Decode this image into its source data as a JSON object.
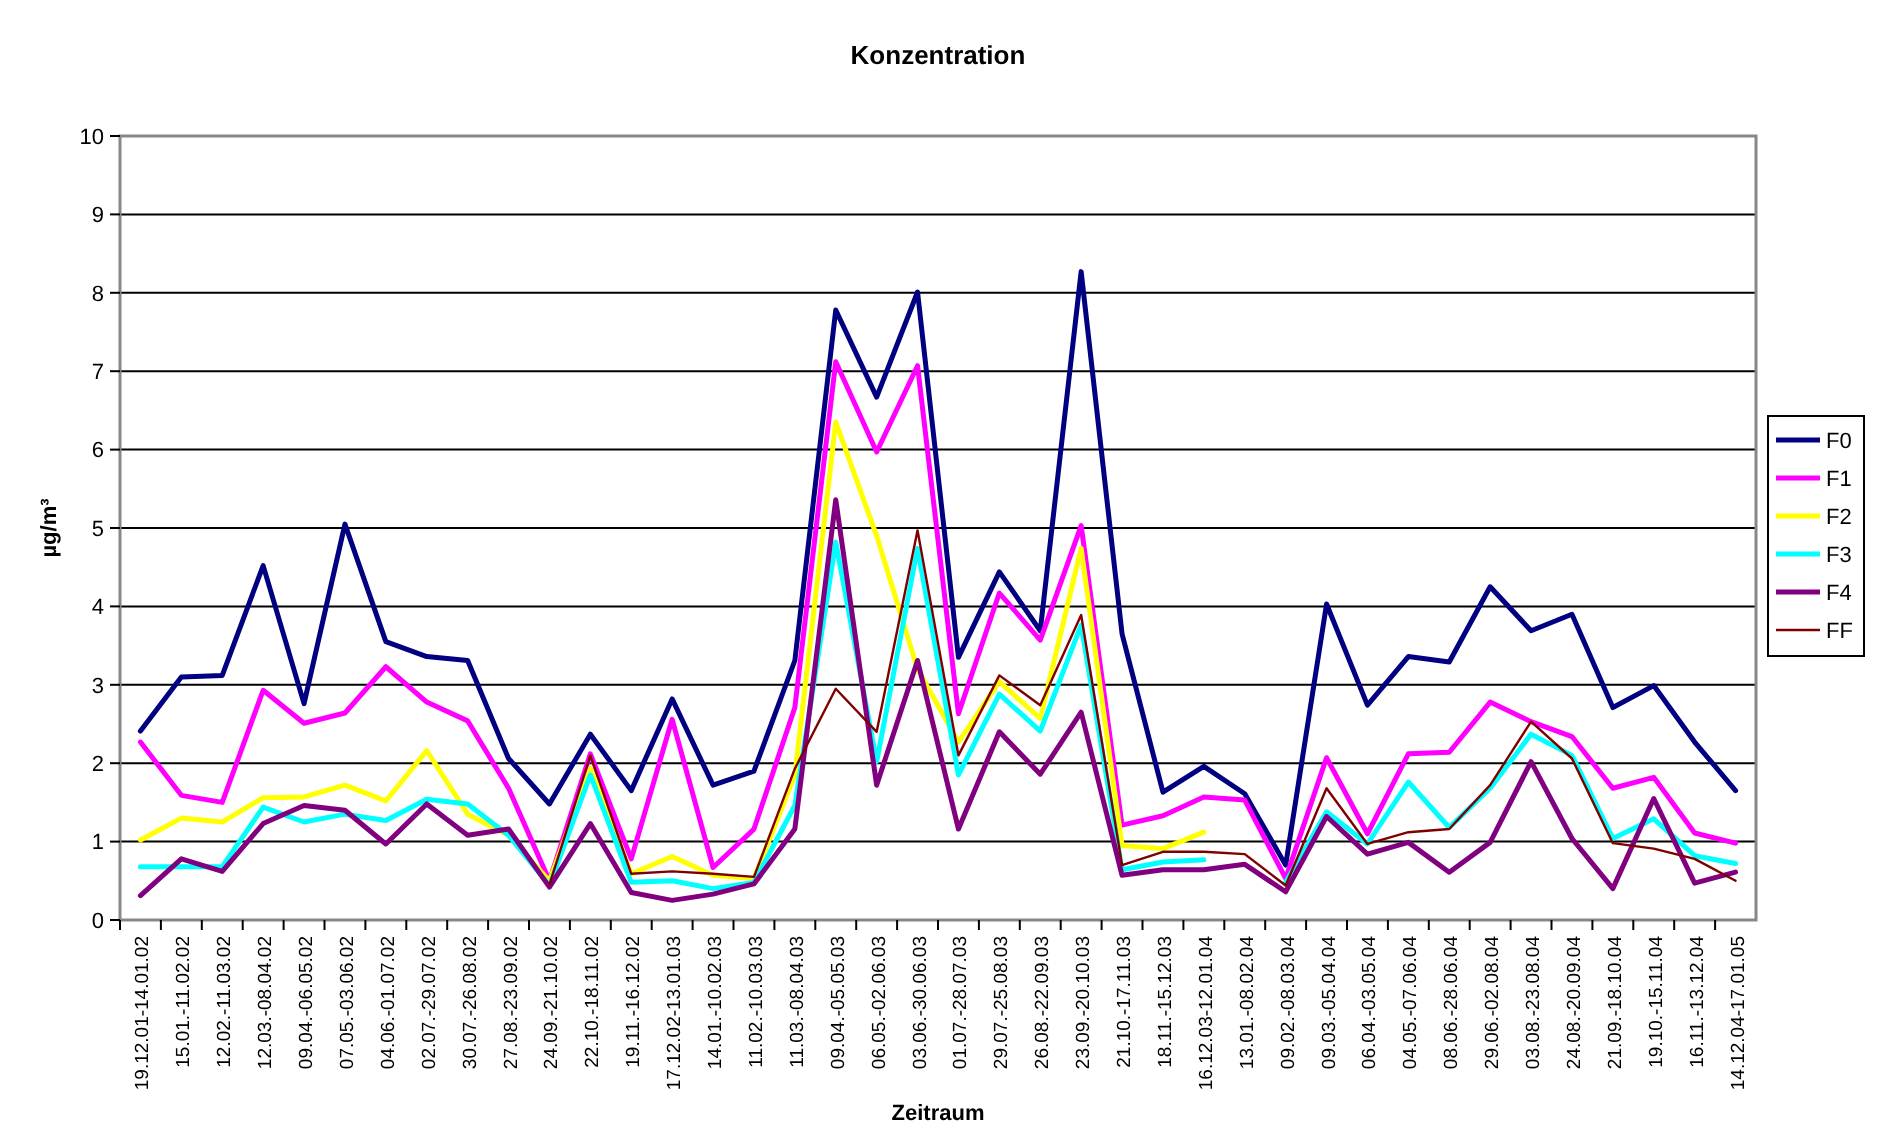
{
  "chart_data": {
    "type": "line",
    "title": "Konzentration",
    "xlabel": "Zeitraum",
    "ylabel": "µg/m³",
    "categories": [
      "19.12.01-14.01.02",
      "15.01.-11.02.02",
      "12.02.-11.03.02",
      "12.03.-08.04.02",
      "09.04.-06.05.02",
      "07.05.-03.06.02",
      "04.06.-01.07.02",
      "02.07.-29.07.02",
      "30.07.-26.08.02",
      "27.08.-23.09.02",
      "24.09.-21.10.02",
      "22.10.-18.11.02",
      "19.11.-16.12.02",
      "17.12.02-13.01.03",
      "14.01.-10.02.03",
      "11.02.-10.03.03",
      "11.03.-08.04.03",
      "09.04.-05.05.03",
      "06.05.-02.06.03",
      "03.06.-30.06.03",
      "01.07.-28.07.03",
      "29.07.-25.08.03",
      "26.08.-22.09.03",
      "23.09.-20.10.03",
      "21.10.-17.11.03",
      "18.11.-15.12.03",
      "16.12.03-12.01.04",
      "13.01.-08.02.04",
      "09.02.-08.03.04",
      "09.03.-05.04.04",
      "06.04.-03.05.04",
      "04.05.-07.06.04",
      "08.06.-28.06.04",
      "29.06.-02.08.04",
      "03.08.-23.08.04",
      "24.08.-20.09.04",
      "21.09.-18.10.04",
      "19.10.-15.11.04",
      "16.11.-13.12.04",
      "14.12.04-17.01.05"
    ],
    "series": [
      {
        "name": "F0",
        "color": "#000080",
        "values": [
          2.41,
          3.1,
          3.12,
          4.52,
          2.76,
          5.05,
          3.55,
          3.36,
          3.31,
          2.06,
          1.48,
          2.37,
          1.65,
          2.82,
          1.72,
          1.9,
          3.31,
          7.78,
          6.67,
          8.01,
          3.35,
          4.44,
          3.69,
          8.27,
          3.65,
          1.63,
          1.96,
          1.61,
          0.7,
          4.03,
          2.74,
          3.36,
          3.29,
          4.25,
          3.69,
          3.9,
          2.71,
          2.99,
          2.27,
          1.65
        ]
      },
      {
        "name": "F1",
        "color": "#ff00ff",
        "values": [
          2.27,
          1.59,
          1.5,
          2.93,
          2.51,
          2.64,
          3.23,
          2.78,
          2.54,
          1.68,
          0.5,
          2.12,
          0.78,
          2.56,
          0.67,
          1.16,
          2.71,
          7.12,
          5.97,
          7.07,
          2.63,
          4.17,
          3.57,
          5.03,
          1.21,
          1.33,
          1.57,
          1.53,
          0.53,
          2.07,
          1.1,
          2.12,
          2.14,
          2.78,
          2.53,
          2.34,
          1.68,
          1.82,
          1.11,
          0.98
        ]
      },
      {
        "name": "F2",
        "color": "#ffff00",
        "values": [
          1.02,
          1.3,
          1.25,
          1.56,
          1.57,
          1.72,
          1.52,
          2.16,
          1.35,
          1.08,
          0.5,
          1.93,
          0.59,
          0.81,
          0.57,
          0.53,
          1.85,
          6.35,
          4.9,
          3.2,
          2.27,
          3.04,
          2.57,
          4.74,
          0.95,
          0.91,
          1.12,
          null,
          null,
          null,
          null,
          null,
          null,
          null,
          null,
          null,
          null,
          null,
          null,
          null
        ]
      },
      {
        "name": "F3",
        "color": "#00ffff",
        "values": [
          0.68,
          0.68,
          0.68,
          1.44,
          1.25,
          1.35,
          1.27,
          1.54,
          1.48,
          1.08,
          0.44,
          1.85,
          0.48,
          0.5,
          0.4,
          0.48,
          1.46,
          4.82,
          2.02,
          4.74,
          1.85,
          2.88,
          2.41,
          3.76,
          0.64,
          0.74,
          0.77,
          null,
          0.48,
          1.38,
          0.97,
          1.76,
          1.18,
          1.68,
          2.37,
          2.1,
          1.04,
          1.29,
          0.82,
          0.72
        ]
      },
      {
        "name": "F4",
        "color": "#800080",
        "values": [
          0.31,
          0.78,
          0.62,
          1.23,
          1.46,
          1.4,
          0.97,
          1.48,
          1.08,
          1.16,
          0.42,
          1.23,
          0.35,
          0.25,
          0.33,
          0.46,
          1.16,
          5.36,
          1.72,
          3.31,
          1.16,
          2.4,
          1.86,
          2.65,
          0.57,
          0.64,
          0.64,
          0.71,
          0.36,
          1.32,
          0.84,
          0.99,
          0.61,
          0.99,
          2.02,
          1.04,
          0.4,
          1.55,
          0.47,
          0.61
        ]
      },
      {
        "name": "FF",
        "color": "#800000",
        "values": [
          null,
          null,
          null,
          null,
          null,
          null,
          null,
          null,
          null,
          null,
          0.45,
          2.1,
          0.59,
          0.62,
          0.59,
          0.55,
          1.93,
          2.95,
          2.4,
          4.97,
          2.1,
          3.12,
          2.74,
          3.89,
          0.7,
          0.87,
          0.87,
          0.84,
          0.44,
          1.68,
          0.97,
          1.12,
          1.16,
          1.72,
          2.53,
          2.06,
          0.98,
          0.91,
          0.78,
          0.5
        ]
      }
    ],
    "ylim": [
      0,
      10
    ],
    "yticks": [
      0,
      1,
      2,
      3,
      4,
      5,
      6,
      7,
      8,
      9,
      10
    ],
    "grid": "y",
    "legend": "right",
    "line_style": "solid"
  }
}
